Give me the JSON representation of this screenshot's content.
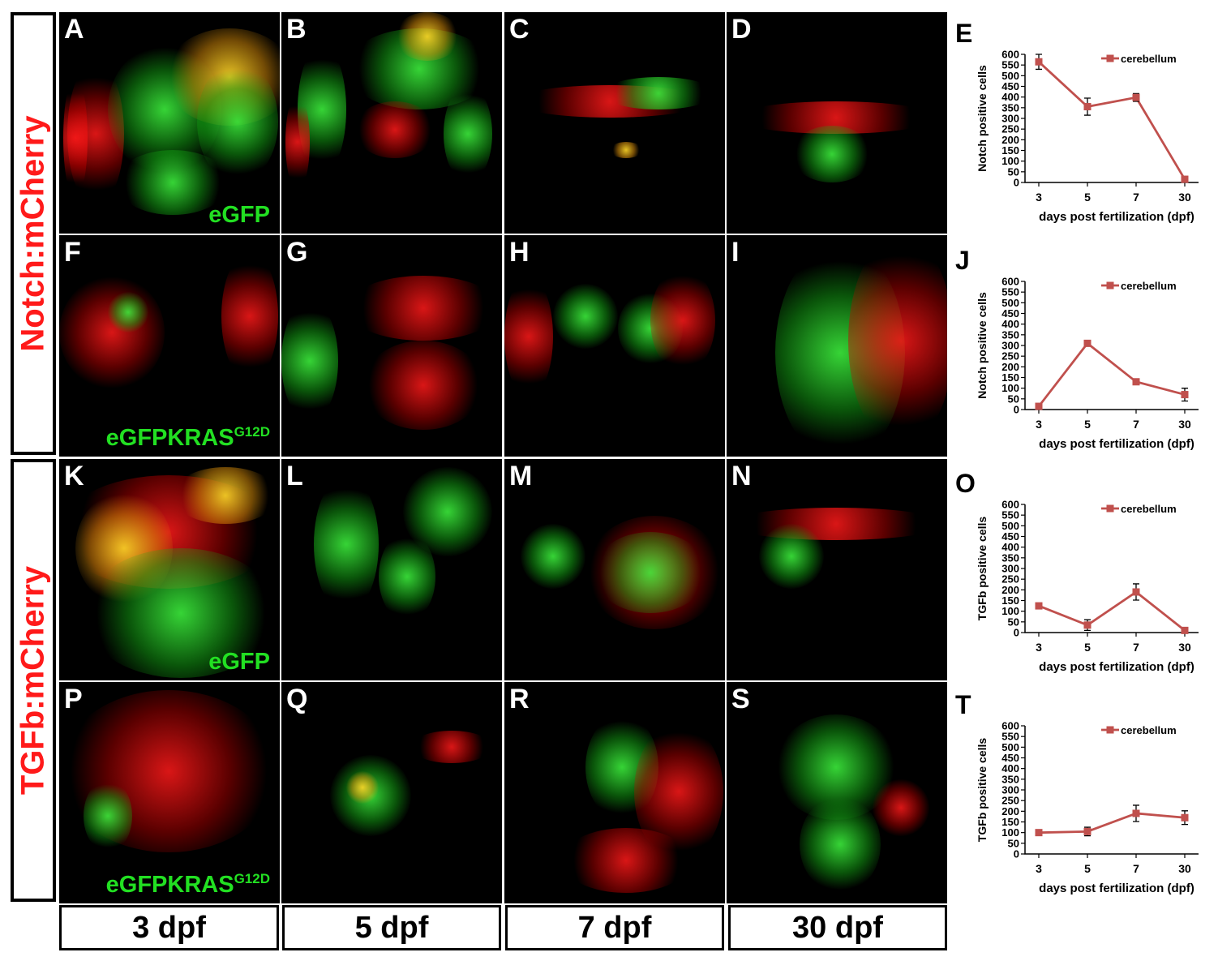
{
  "row_labels": [
    "Notch:mCherry",
    "TGFb:mCherry"
  ],
  "panels": [
    {
      "letter": "A",
      "caption": "eGFP"
    },
    {
      "letter": "B"
    },
    {
      "letter": "C"
    },
    {
      "letter": "D"
    },
    {
      "letter": "F",
      "caption": "eGFPKRAS",
      "caption_sup": "G12D"
    },
    {
      "letter": "G"
    },
    {
      "letter": "H"
    },
    {
      "letter": "I"
    },
    {
      "letter": "K",
      "caption": "eGFP"
    },
    {
      "letter": "L"
    },
    {
      "letter": "M"
    },
    {
      "letter": "N"
    },
    {
      "letter": "P",
      "caption": "eGFPKRAS",
      "caption_sup": "G12D"
    },
    {
      "letter": "Q"
    },
    {
      "letter": "R"
    },
    {
      "letter": "S"
    }
  ],
  "time_labels": [
    "3 dpf",
    "5 dpf",
    "7 dpf",
    "30 dpf"
  ],
  "colors": {
    "red_signal": "#ff1a1a",
    "green_signal": "#22e022",
    "series": "#c0504d"
  },
  "chart_data": [
    {
      "type": "line",
      "letter": "E",
      "x": [
        "3",
        "5",
        "7",
        "30"
      ],
      "series": [
        {
          "name": "cerebellum",
          "values": [
            565,
            355,
            398,
            15
          ],
          "errors": [
            35,
            40,
            18,
            5
          ]
        }
      ],
      "xlabel": "days post fertilization (dpf)",
      "ylabel": "Notch positive cells",
      "ylim": [
        0,
        600
      ],
      "yticks": [
        0,
        50,
        100,
        150,
        200,
        250,
        300,
        350,
        400,
        450,
        500,
        550,
        600
      ],
      "legend": "top-right"
    },
    {
      "type": "line",
      "letter": "J",
      "x": [
        "3",
        "5",
        "7",
        "30"
      ],
      "series": [
        {
          "name": "cerebellum",
          "values": [
            15,
            310,
            130,
            70
          ],
          "errors": [
            4,
            5,
            12,
            30
          ]
        }
      ],
      "xlabel": "days post fertilization (dpf)",
      "ylabel": "Notch positive cells",
      "ylim": [
        0,
        600
      ],
      "yticks": [
        0,
        50,
        100,
        150,
        200,
        250,
        300,
        350,
        400,
        450,
        500,
        550,
        600
      ],
      "legend": "top-right"
    },
    {
      "type": "line",
      "letter": "O",
      "x": [
        "3",
        "5",
        "7",
        "30"
      ],
      "series": [
        {
          "name": "cerebellum",
          "values": [
            125,
            35,
            190,
            10
          ],
          "errors": [
            5,
            25,
            38,
            4
          ]
        }
      ],
      "xlabel": "days post fertilization (dpf)",
      "ylabel": "TGFb positive cells",
      "ylim": [
        0,
        600
      ],
      "yticks": [
        0,
        50,
        100,
        150,
        200,
        250,
        300,
        350,
        400,
        450,
        500,
        550,
        600
      ],
      "legend": "top-right"
    },
    {
      "type": "line",
      "letter": "T",
      "x": [
        "3",
        "5",
        "7",
        "30"
      ],
      "series": [
        {
          "name": "cerebellum",
          "values": [
            100,
            105,
            190,
            170
          ],
          "errors": [
            10,
            20,
            38,
            32
          ]
        }
      ],
      "xlabel": "days post fertilization (dpf)",
      "ylabel": "TGFb positive cells",
      "ylim": [
        0,
        600
      ],
      "yticks": [
        0,
        50,
        100,
        150,
        200,
        250,
        300,
        350,
        400,
        450,
        500,
        550,
        600
      ],
      "legend": "top-right"
    }
  ]
}
